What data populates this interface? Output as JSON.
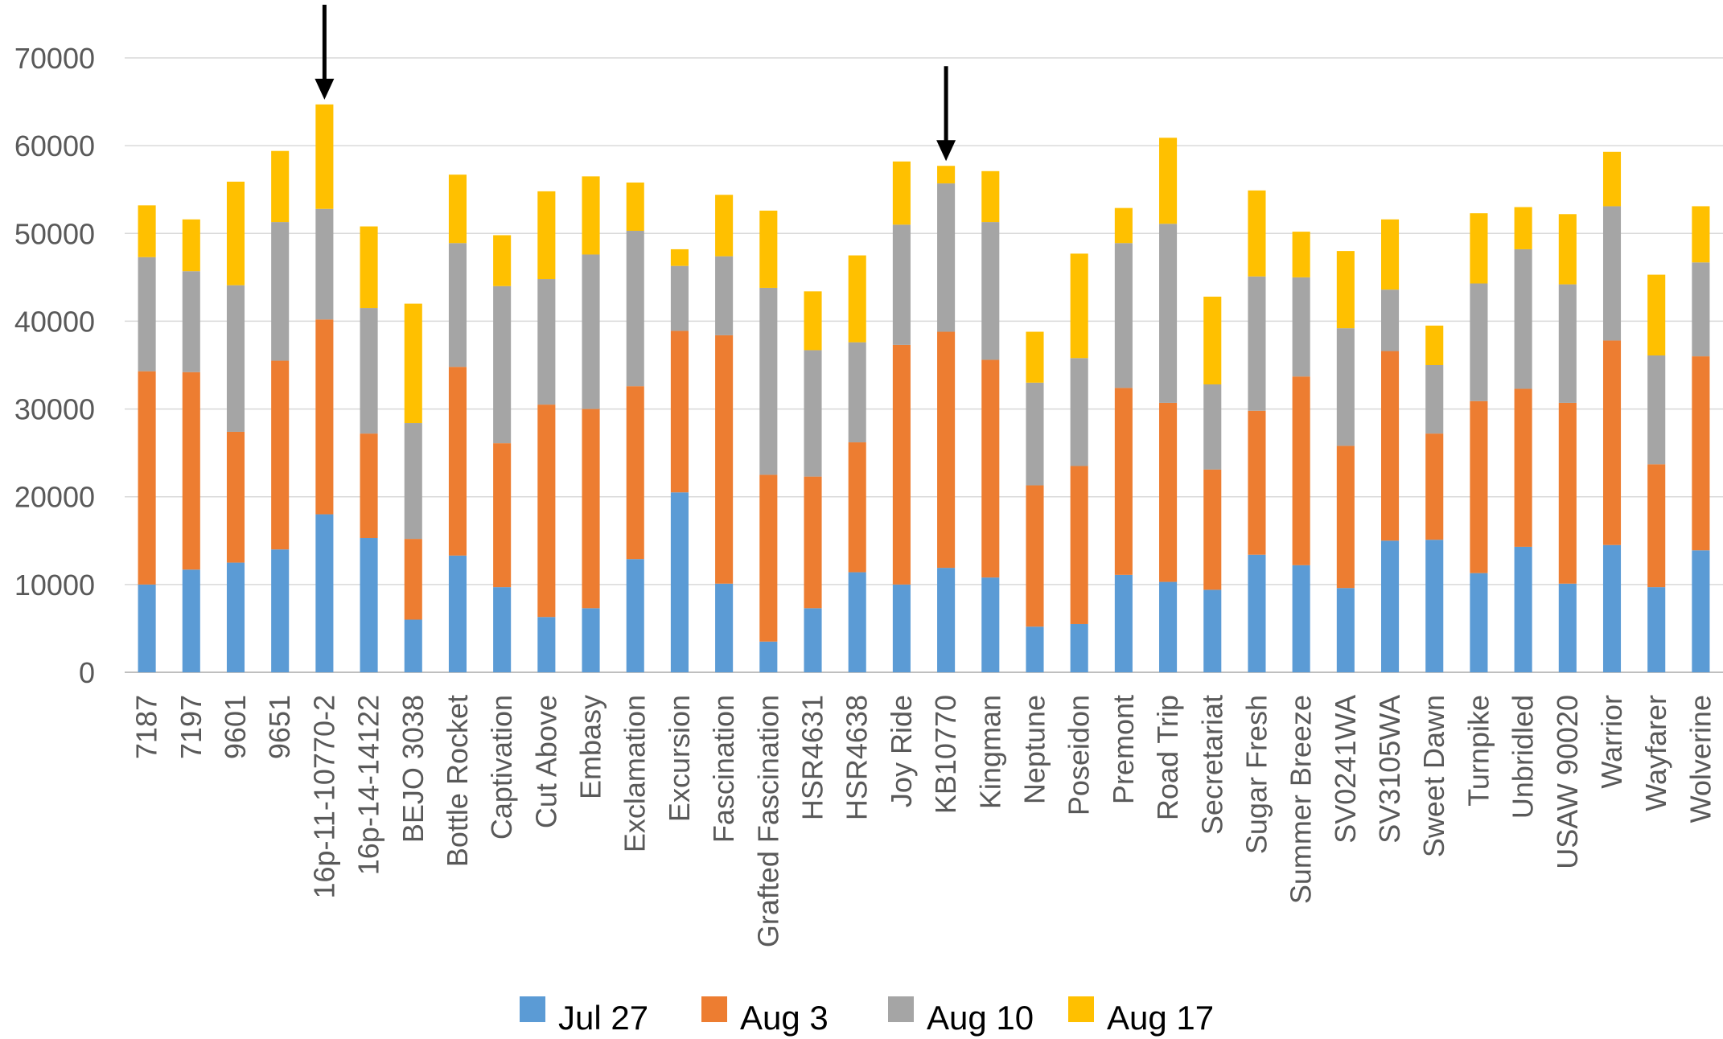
{
  "chart_data": {
    "type": "bar",
    "stacked": true,
    "categories": [
      "7187",
      "7197",
      "9601",
      "9651",
      "16p-11-10770-2",
      "16p-14-14122",
      "BEJO 3038",
      "Bottle Rocket",
      "Captivation",
      "Cut Above",
      "Embasy",
      "Exclamation",
      "Excursion",
      "Fascination",
      "Grafted Fascination",
      "HSR4631",
      "HSR4638",
      "Joy Ride",
      "KB10770",
      "Kingman",
      "Neptune",
      "Poseidon",
      "Premont",
      "Road Trip",
      "Secretariat",
      "Sugar Fresh",
      "Summer Breeze",
      "SV0241WA",
      "SV3105WA",
      "Sweet Dawn",
      "Turnpike",
      "Unbridled",
      "USAW 90020",
      "Warrior",
      "Wayfarer",
      "Wolverine"
    ],
    "series": [
      {
        "name": "Jul 27",
        "color": "#5B9BD5",
        "values": [
          10000,
          11700,
          12500,
          14000,
          18000,
          15300,
          6000,
          13300,
          9700,
          6300,
          7300,
          12900,
          20500,
          10100,
          3500,
          7300,
          11400,
          10000,
          11900,
          10800,
          5200,
          5500,
          11100,
          10300,
          9400,
          13400,
          12200,
          9600,
          15000,
          15100,
          11300,
          14300,
          10100,
          14500,
          9700,
          13900
        ]
      },
      {
        "name": "Aug 3",
        "color": "#ED7D31",
        "values": [
          24300,
          22500,
          14900,
          21500,
          22200,
          11900,
          9200,
          21500,
          16400,
          24200,
          22700,
          19700,
          18400,
          28300,
          19000,
          15000,
          14800,
          27300,
          26900,
          24800,
          16100,
          18000,
          21300,
          20400,
          13700,
          16400,
          21500,
          16200,
          21600,
          12100,
          19600,
          18000,
          20600,
          23300,
          14000,
          22100
        ]
      },
      {
        "name": "Aug 10",
        "color": "#A5A5A5",
        "values": [
          13000,
          11500,
          16700,
          15800,
          12600,
          14300,
          13200,
          14100,
          17900,
          14300,
          17600,
          17700,
          7400,
          9000,
          21300,
          14400,
          11400,
          13700,
          16900,
          15700,
          11700,
          12300,
          16500,
          20400,
          9700,
          15300,
          11300,
          13400,
          7000,
          7800,
          13400,
          15900,
          13500,
          15300,
          12400,
          10700
        ]
      },
      {
        "name": "Aug 17",
        "color": "#FFC000",
        "values": [
          5900,
          5900,
          11800,
          8100,
          11900,
          9300,
          13600,
          7800,
          5800,
          10000,
          8900,
          5500,
          1900,
          7000,
          8800,
          6700,
          9900,
          7200,
          2000,
          5800,
          5800,
          11900,
          4000,
          9800,
          10000,
          9800,
          5200,
          8800,
          8000,
          4500,
          8000,
          4800,
          8000,
          6200,
          9200,
          6400
        ]
      }
    ],
    "ylim": [
      0,
      70000
    ],
    "yticks": [
      "0",
      "10000",
      "20000",
      "30000",
      "40000",
      "50000",
      "60000",
      "70000"
    ],
    "grid": true,
    "legend": "bottom",
    "annotations": [
      {
        "type": "arrow",
        "category": "16p-11-10770-2"
      },
      {
        "type": "arrow",
        "category": "KB10770"
      }
    ]
  }
}
